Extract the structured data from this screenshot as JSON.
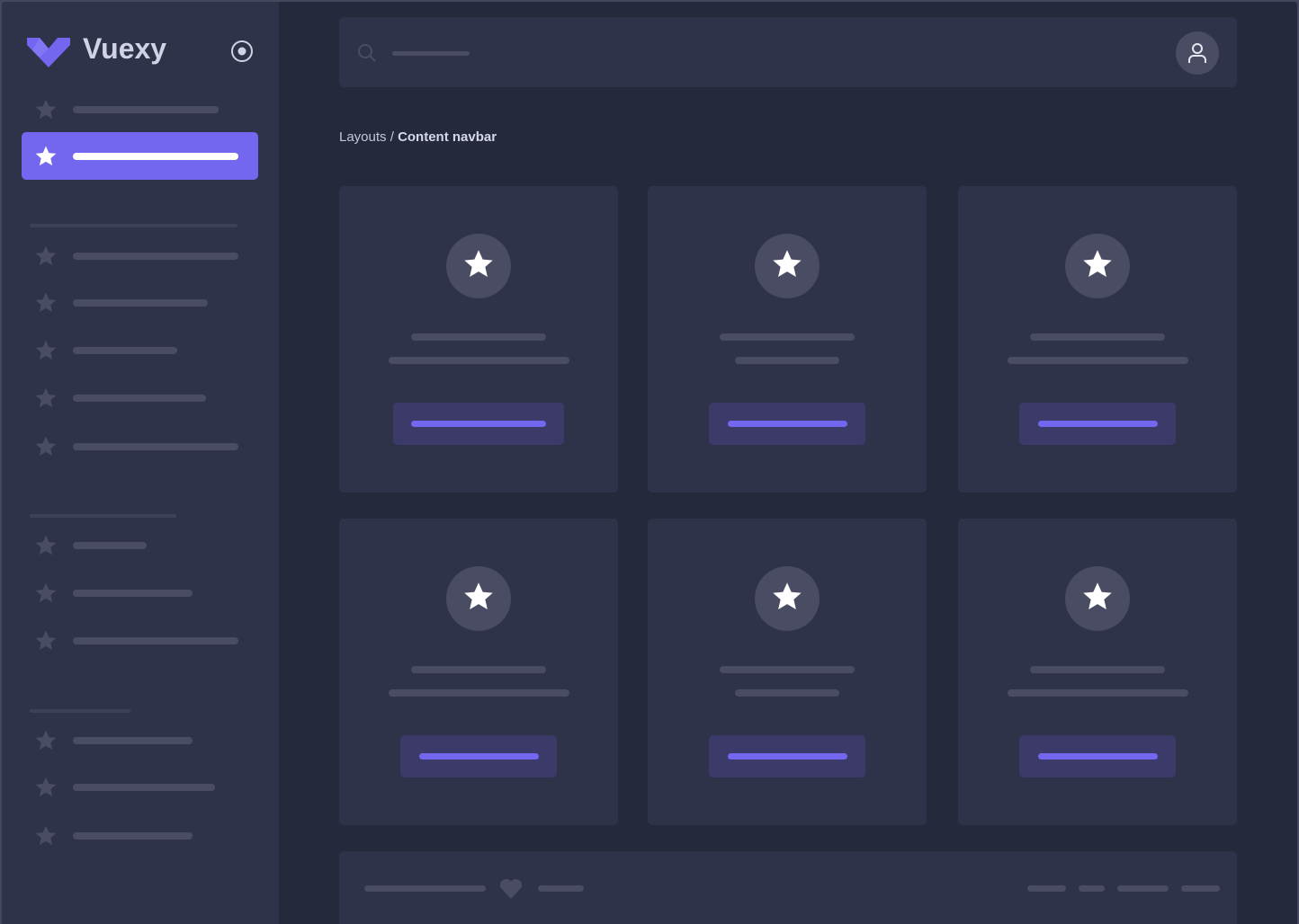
{
  "app": {
    "name": "Vuexy",
    "logo_color": "#7367f0"
  },
  "colors": {
    "primary": "#7367f0",
    "sidebar_bg": "#2f3349",
    "content_bg": "#25293c",
    "card_bg": "#2f3349",
    "placeholder": "#4a4c63"
  },
  "sidebar": {
    "toggle_icon": "radio-target-icon",
    "sections": [
      {
        "items": [
          {
            "icon": "star-icon",
            "active": false
          },
          {
            "icon": "star-icon",
            "active": true
          }
        ]
      },
      {
        "items": [
          {
            "icon": "star-icon"
          },
          {
            "icon": "star-icon"
          },
          {
            "icon": "star-icon"
          },
          {
            "icon": "star-icon"
          },
          {
            "icon": "star-icon"
          }
        ]
      },
      {
        "items": [
          {
            "icon": "star-icon"
          },
          {
            "icon": "star-icon"
          },
          {
            "icon": "star-icon"
          }
        ]
      },
      {
        "items": [
          {
            "icon": "star-icon"
          },
          {
            "icon": "star-icon"
          },
          {
            "icon": "star-icon"
          }
        ]
      }
    ]
  },
  "navbar": {
    "search_icon": "search-icon",
    "user_icon": "user-icon"
  },
  "breadcrumb": {
    "parent": "Layouts",
    "separator": " / ",
    "current": "Content navbar"
  },
  "cards": [
    {
      "icon": "star-icon"
    },
    {
      "icon": "star-icon"
    },
    {
      "icon": "star-icon"
    },
    {
      "icon": "star-icon"
    },
    {
      "icon": "star-icon"
    },
    {
      "icon": "star-icon"
    }
  ],
  "footer": {
    "icon": "heart-icon"
  }
}
